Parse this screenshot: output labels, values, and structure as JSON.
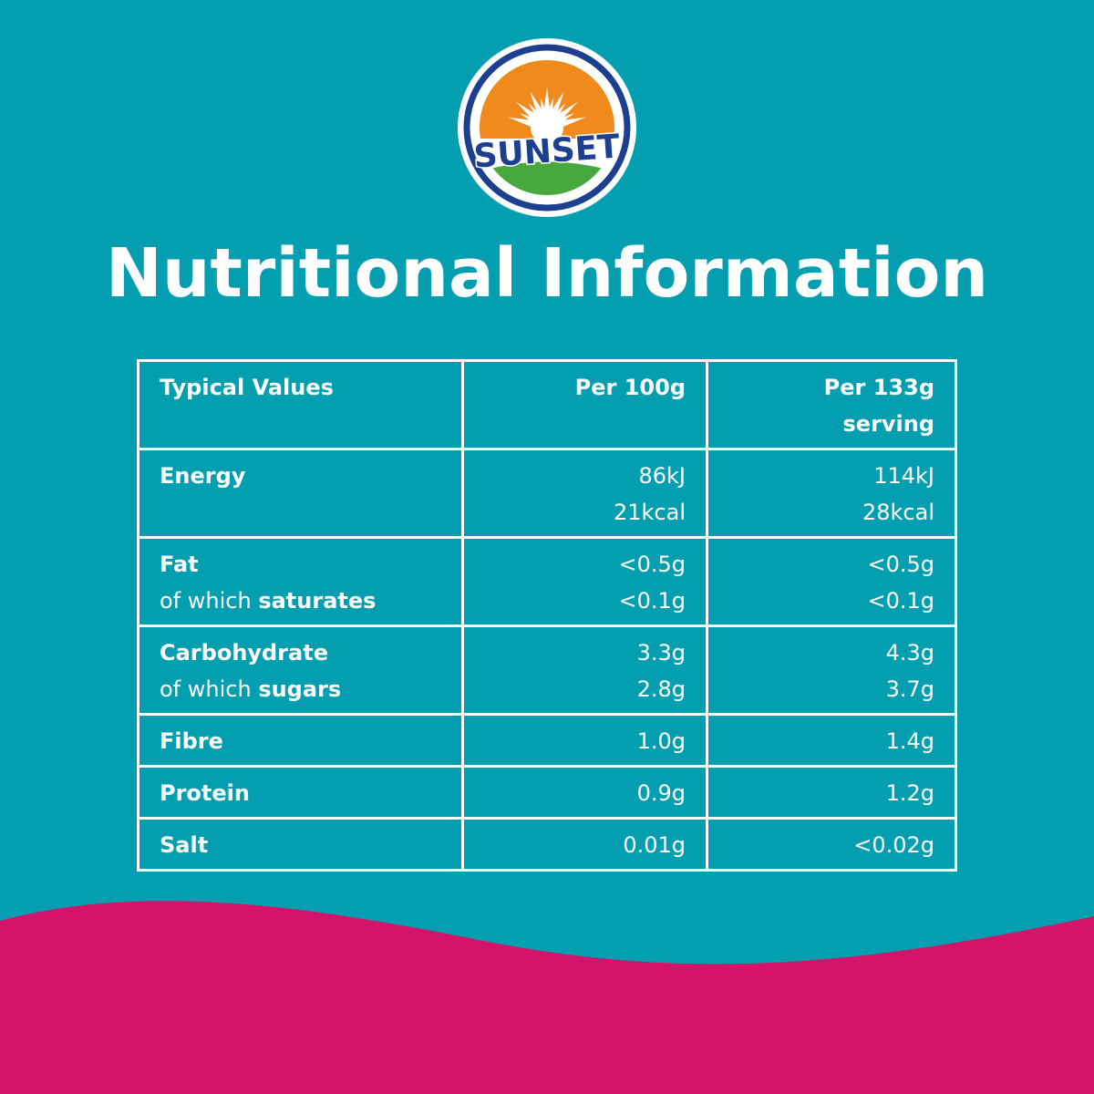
{
  "brand": {
    "name": "SUNSET",
    "colors": {
      "navy": "#1c3f8f",
      "orange": "#f08a1c",
      "green": "#46a83d",
      "white": "#ffffff"
    }
  },
  "title": "Nutritional Information",
  "colors": {
    "background": "#039fb0",
    "wave": "#d4146a",
    "text": "#ffffff"
  },
  "table": {
    "header": {
      "label": "Typical Values",
      "col1": "Per 100g",
      "col2_line1": "Per 133g",
      "col2_line2": "serving"
    },
    "energy": {
      "label": "Energy",
      "p100_kj": "86kJ",
      "p100_kcal": "21kcal",
      "serv_kj": "114kJ",
      "serv_kcal": "28kcal"
    },
    "fat": {
      "label": "Fat",
      "sub_prefix": "of which ",
      "sub_bold": "saturates",
      "p100": "<0.5g",
      "p100_sub": "<0.1g",
      "serv": "<0.5g",
      "serv_sub": "<0.1g"
    },
    "carbs": {
      "label": "Carbohydrate",
      "sub_prefix": "of which ",
      "sub_bold": "sugars",
      "p100": "3.3g",
      "p100_sub": "2.8g",
      "serv": "4.3g",
      "serv_sub": "3.7g"
    },
    "fibre": {
      "label": "Fibre",
      "p100": "1.0g",
      "serv": "1.4g"
    },
    "protein": {
      "label": "Protein",
      "p100": "0.9g",
      "serv": "1.2g"
    },
    "salt": {
      "label": "Salt",
      "p100": "0.01g",
      "serv": "<0.02g"
    }
  }
}
